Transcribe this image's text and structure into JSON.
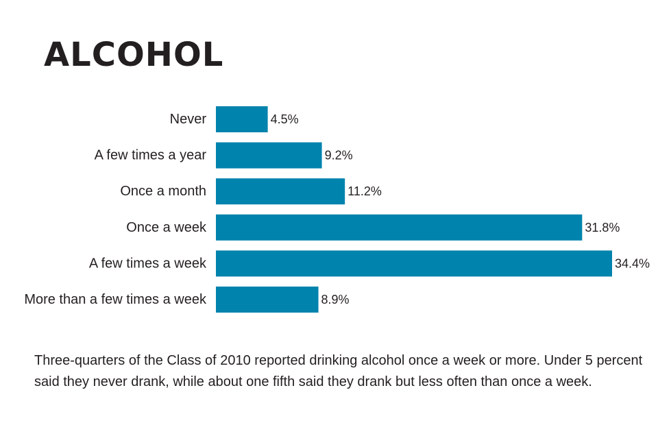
{
  "title": "ALCOHOL",
  "caption": "Three-quarters of the Class of 2010 reported drinking alcohol once a week or more. Under 5 percent said they never drank, while about one fifth said they drank but less often than once a week.",
  "colors": {
    "bar": "#0083ad",
    "text": "#231f20"
  },
  "chart_data": {
    "type": "bar",
    "orientation": "horizontal",
    "categories": [
      "Never",
      "A few times a year",
      "Once a month",
      "Once a week",
      "A few times a week",
      "More than a few times a week"
    ],
    "values": [
      4.5,
      9.2,
      11.2,
      31.8,
      34.4,
      8.9
    ],
    "value_labels": [
      "4.5%",
      "9.2%",
      "11.2%",
      "31.8%",
      "34.4%",
      "8.9%"
    ],
    "unit": "%",
    "xlim": [
      0,
      34.4
    ],
    "grid": false,
    "legend": "none"
  }
}
